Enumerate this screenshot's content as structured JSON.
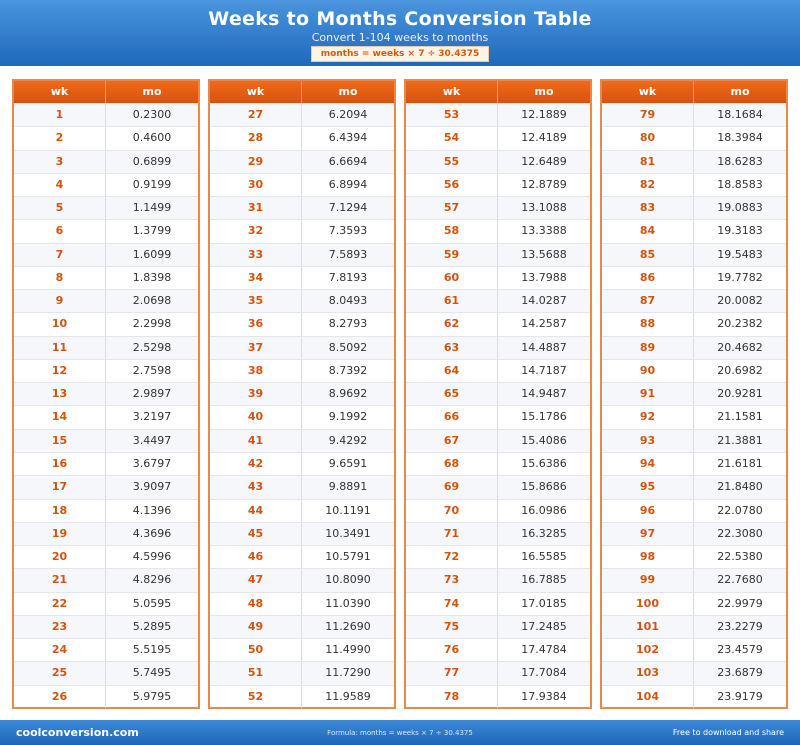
{
  "header": {
    "title": "Weeks to Months Conversion Table",
    "subtitle": "Convert 1-104 weeks to months",
    "formula": "months = weeks × 7 ÷ 30.4375"
  },
  "columns": {
    "week": "wk",
    "month": "mo"
  },
  "tables": [
    {
      "rows": [
        [
          "1",
          "0.2300"
        ],
        [
          "2",
          "0.4600"
        ],
        [
          "3",
          "0.6899"
        ],
        [
          "4",
          "0.9199"
        ],
        [
          "5",
          "1.1499"
        ],
        [
          "6",
          "1.3799"
        ],
        [
          "7",
          "1.6099"
        ],
        [
          "8",
          "1.8398"
        ],
        [
          "9",
          "2.0698"
        ],
        [
          "10",
          "2.2998"
        ],
        [
          "11",
          "2.5298"
        ],
        [
          "12",
          "2.7598"
        ],
        [
          "13",
          "2.9897"
        ],
        [
          "14",
          "3.2197"
        ],
        [
          "15",
          "3.4497"
        ],
        [
          "16",
          "3.6797"
        ],
        [
          "17",
          "3.9097"
        ],
        [
          "18",
          "4.1396"
        ],
        [
          "19",
          "4.3696"
        ],
        [
          "20",
          "4.5996"
        ],
        [
          "21",
          "4.8296"
        ],
        [
          "22",
          "5.0595"
        ],
        [
          "23",
          "5.2895"
        ],
        [
          "24",
          "5.5195"
        ],
        [
          "25",
          "5.7495"
        ],
        [
          "26",
          "5.9795"
        ]
      ]
    },
    {
      "rows": [
        [
          "27",
          "6.2094"
        ],
        [
          "28",
          "6.4394"
        ],
        [
          "29",
          "6.6694"
        ],
        [
          "30",
          "6.8994"
        ],
        [
          "31",
          "7.1294"
        ],
        [
          "32",
          "7.3593"
        ],
        [
          "33",
          "7.5893"
        ],
        [
          "34",
          "7.8193"
        ],
        [
          "35",
          "8.0493"
        ],
        [
          "36",
          "8.2793"
        ],
        [
          "37",
          "8.5092"
        ],
        [
          "38",
          "8.7392"
        ],
        [
          "39",
          "8.9692"
        ],
        [
          "40",
          "9.1992"
        ],
        [
          "41",
          "9.4292"
        ],
        [
          "42",
          "9.6591"
        ],
        [
          "43",
          "9.8891"
        ],
        [
          "44",
          "10.1191"
        ],
        [
          "45",
          "10.3491"
        ],
        [
          "46",
          "10.5791"
        ],
        [
          "47",
          "10.8090"
        ],
        [
          "48",
          "11.0390"
        ],
        [
          "49",
          "11.2690"
        ],
        [
          "50",
          "11.4990"
        ],
        [
          "51",
          "11.7290"
        ],
        [
          "52",
          "11.9589"
        ]
      ]
    },
    {
      "rows": [
        [
          "53",
          "12.1889"
        ],
        [
          "54",
          "12.4189"
        ],
        [
          "55",
          "12.6489"
        ],
        [
          "56",
          "12.8789"
        ],
        [
          "57",
          "13.1088"
        ],
        [
          "58",
          "13.3388"
        ],
        [
          "59",
          "13.5688"
        ],
        [
          "60",
          "13.7988"
        ],
        [
          "61",
          "14.0287"
        ],
        [
          "62",
          "14.2587"
        ],
        [
          "63",
          "14.4887"
        ],
        [
          "64",
          "14.7187"
        ],
        [
          "65",
          "14.9487"
        ],
        [
          "66",
          "15.1786"
        ],
        [
          "67",
          "15.4086"
        ],
        [
          "68",
          "15.6386"
        ],
        [
          "69",
          "15.8686"
        ],
        [
          "70",
          "16.0986"
        ],
        [
          "71",
          "16.3285"
        ],
        [
          "72",
          "16.5585"
        ],
        [
          "73",
          "16.7885"
        ],
        [
          "74",
          "17.0185"
        ],
        [
          "75",
          "17.2485"
        ],
        [
          "76",
          "17.4784"
        ],
        [
          "77",
          "17.7084"
        ],
        [
          "78",
          "17.9384"
        ]
      ]
    },
    {
      "rows": [
        [
          "79",
          "18.1684"
        ],
        [
          "80",
          "18.3984"
        ],
        [
          "81",
          "18.6283"
        ],
        [
          "82",
          "18.8583"
        ],
        [
          "83",
          "19.0883"
        ],
        [
          "84",
          "19.3183"
        ],
        [
          "85",
          "19.5483"
        ],
        [
          "86",
          "19.7782"
        ],
        [
          "87",
          "20.0082"
        ],
        [
          "88",
          "20.2382"
        ],
        [
          "89",
          "20.4682"
        ],
        [
          "90",
          "20.6982"
        ],
        [
          "91",
          "20.9281"
        ],
        [
          "92",
          "21.1581"
        ],
        [
          "93",
          "21.3881"
        ],
        [
          "94",
          "21.6181"
        ],
        [
          "95",
          "21.8480"
        ],
        [
          "96",
          "22.0780"
        ],
        [
          "97",
          "22.3080"
        ],
        [
          "98",
          "22.5380"
        ],
        [
          "99",
          "22.7680"
        ],
        [
          "100",
          "22.9979"
        ],
        [
          "101",
          "23.2279"
        ],
        [
          "102",
          "23.4579"
        ],
        [
          "103",
          "23.6879"
        ],
        [
          "104",
          "23.9179"
        ]
      ]
    }
  ],
  "footer": {
    "brand": "coolconversion.com",
    "formula": "Formula: months = weeks × 7 ÷ 30.4375",
    "share": "Free to download and share"
  },
  "colors": {
    "header_blue": "#1f68bb",
    "accent_orange": "#d8520c"
  }
}
